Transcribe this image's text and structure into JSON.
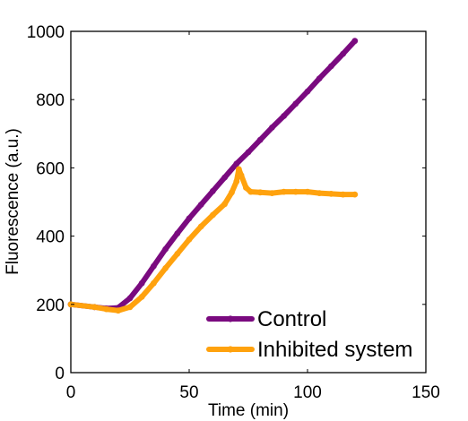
{
  "chart_data": {
    "type": "line",
    "xlabel": "Time (min)",
    "ylabel": "Fluorescence (a.u.)",
    "xlim": [
      0,
      150
    ],
    "ylim": [
      0,
      1000
    ],
    "xticks": [
      0,
      50,
      100,
      150
    ],
    "xtick_labels": [
      "0",
      "50",
      "100",
      "150"
    ],
    "yticks": [
      0,
      200,
      400,
      600,
      800,
      1000
    ],
    "ytick_labels": [
      "0",
      "200",
      "400",
      "600",
      "800",
      "1000"
    ],
    "grid": false,
    "legend_position": "bottom-right",
    "series": [
      {
        "name": "Control",
        "color": "#7a0a7f",
        "x": [
          0,
          10,
          15,
          20,
          25,
          30,
          35,
          40,
          45,
          50,
          55,
          60,
          65,
          70,
          75,
          80,
          85,
          90,
          95,
          100,
          105,
          110,
          115,
          120
        ],
        "y": [
          200,
          192,
          188,
          190,
          218,
          262,
          312,
          362,
          408,
          452,
          492,
          532,
          572,
          612,
          646,
          682,
          718,
          752,
          788,
          824,
          862,
          898,
          934,
          972
        ]
      },
      {
        "name": "Inhibited system",
        "color": "#ffa20e",
        "x": [
          0,
          10,
          15,
          20,
          25,
          30,
          35,
          40,
          45,
          50,
          55,
          60,
          65,
          68,
          70,
          71,
          72,
          74,
          76,
          80,
          85,
          90,
          95,
          100,
          105,
          110,
          115,
          120
        ],
        "y": [
          200,
          192,
          186,
          182,
          192,
          222,
          262,
          306,
          348,
          390,
          428,
          462,
          494,
          528,
          560,
          596,
          578,
          542,
          530,
          528,
          526,
          530,
          530,
          530,
          526,
          524,
          522,
          522
        ]
      }
    ]
  }
}
